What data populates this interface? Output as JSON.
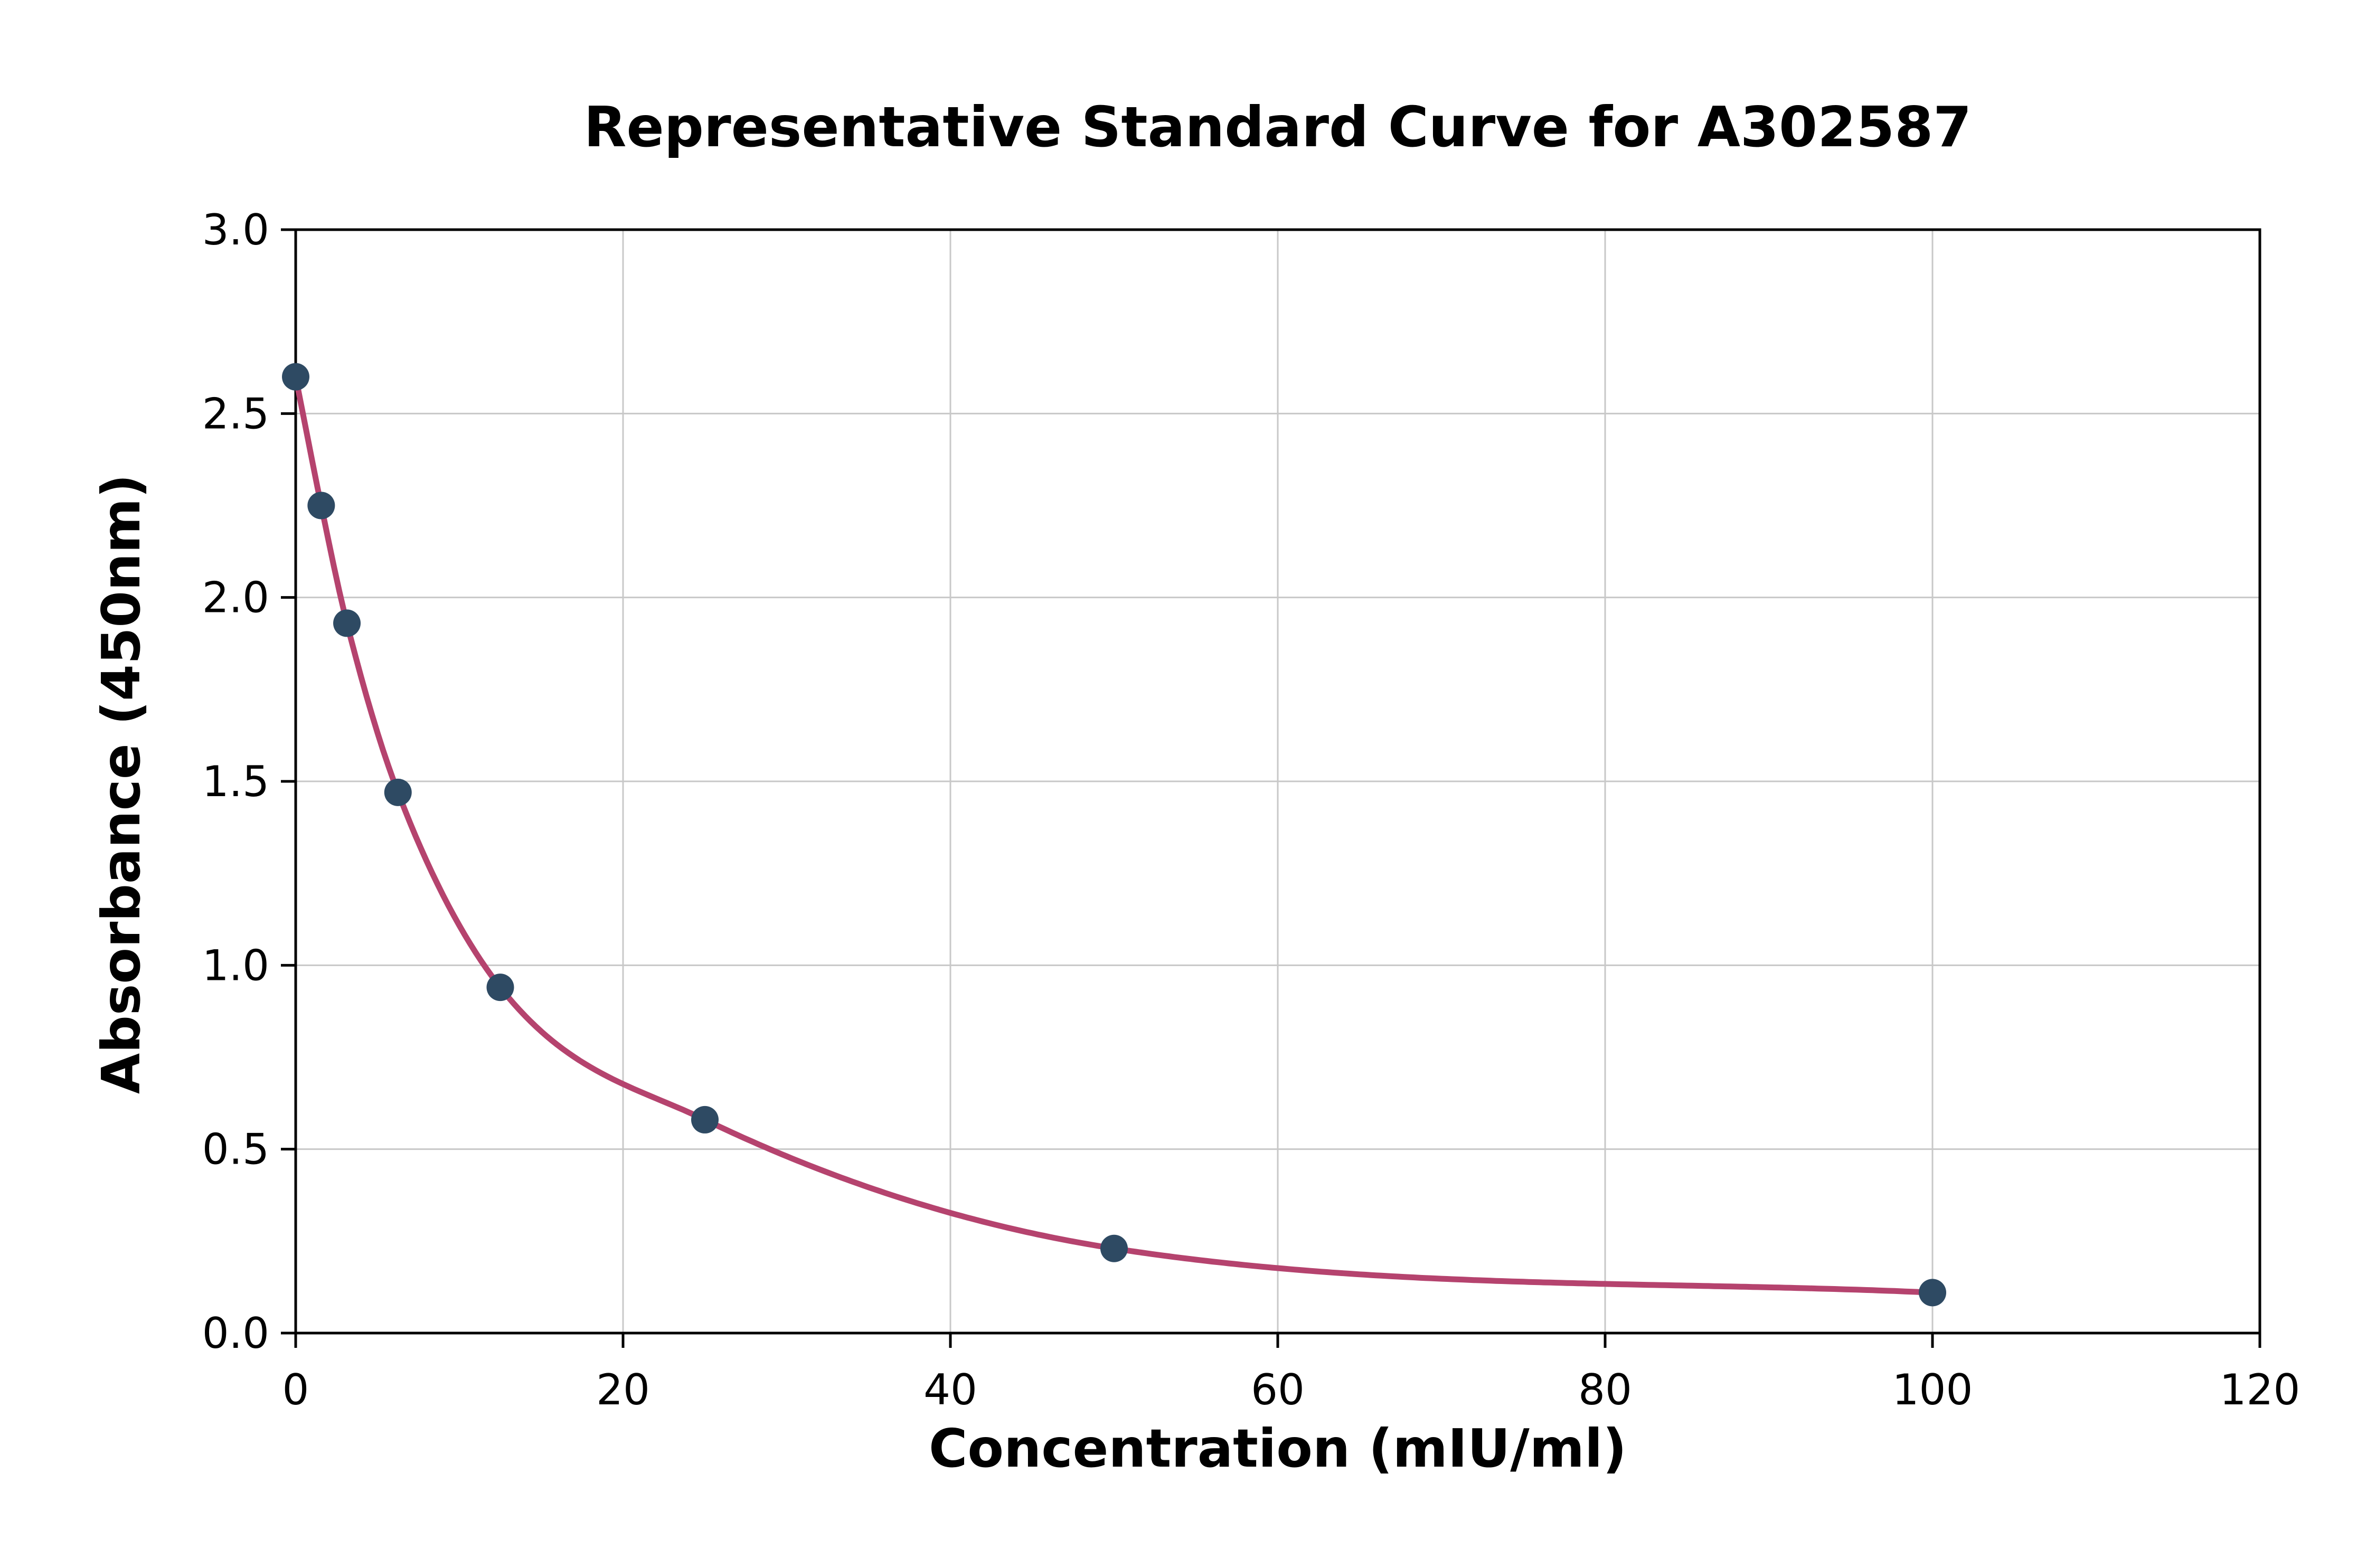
{
  "chart_data": {
    "type": "scatter",
    "title": "Representative Standard Curve for A302587",
    "xlabel": "Concentration (mIU/ml)",
    "ylabel": "Absorbance (450nm)",
    "xlim": [
      0,
      120
    ],
    "ylim": [
      0.0,
      3.0
    ],
    "grid": true,
    "legend": "none",
    "xticks": [
      0,
      20,
      40,
      60,
      80,
      100,
      120
    ],
    "xtick_labels": [
      "0",
      "20",
      "40",
      "60",
      "80",
      "100",
      "120"
    ],
    "yticks": [
      0.0,
      0.5,
      1.0,
      1.5,
      2.0,
      2.5,
      3.0
    ],
    "ytick_labels": [
      "0.0",
      "0.5",
      "1.0",
      "1.5",
      "2.0",
      "2.5",
      "3.0"
    ],
    "series": [
      {
        "name": "standards",
        "style": "scatter-with-fit-curve",
        "x": [
          0,
          1.56,
          3.13,
          6.25,
          12.5,
          25,
          50,
          100
        ],
        "y": [
          2.6,
          2.25,
          1.93,
          1.47,
          0.94,
          0.58,
          0.23,
          0.11
        ]
      }
    ],
    "colors": {
      "point": "#2e4a63",
      "fit_line": "#b5436e",
      "grid": "#c8c8c8",
      "axis": "#000000",
      "background": "#ffffff"
    }
  }
}
